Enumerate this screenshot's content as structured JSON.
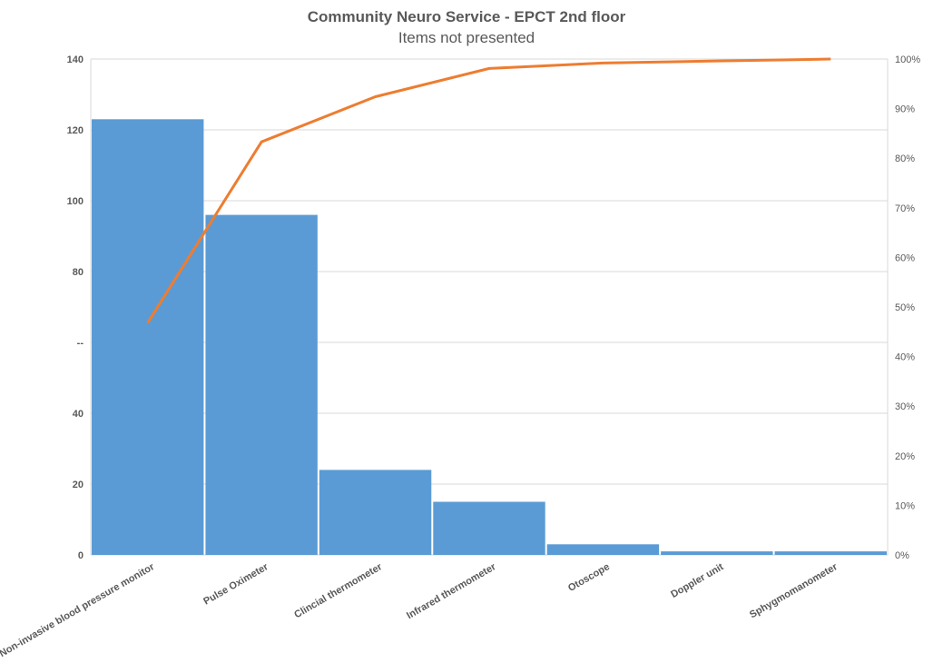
{
  "chart_data": {
    "type": "pareto",
    "title": "Community Neuro Service - EPCT 2nd floor",
    "subtitle": "Items not presented",
    "categories": [
      "Non-invasive blood pressure monitor",
      "Pulse Oximeter",
      "Clincial thermometer",
      "Infrared thermometer",
      "Otoscope",
      "Doppler unit",
      "Sphygmomanometer"
    ],
    "values": [
      123,
      96,
      24,
      15,
      3,
      1,
      1
    ],
    "cumulative_percent": [
      46.8,
      83.3,
      92.4,
      98.1,
      99.2,
      99.6,
      100
    ],
    "ylim": [
      0,
      140
    ],
    "y_ticks": [
      "0",
      "20",
      "40",
      "--",
      "80",
      "100",
      "120",
      "140"
    ],
    "y2lim": [
      0,
      100
    ],
    "y2_ticks": [
      "0%",
      "10%",
      "20%",
      "30%",
      "40%",
      "50%",
      "60%",
      "70%",
      "80%",
      "90%",
      "100%"
    ],
    "grid": true,
    "colors": {
      "bars": "#5B9BD5",
      "line": "#ED7D31",
      "grid": "#D9D9D9"
    }
  }
}
